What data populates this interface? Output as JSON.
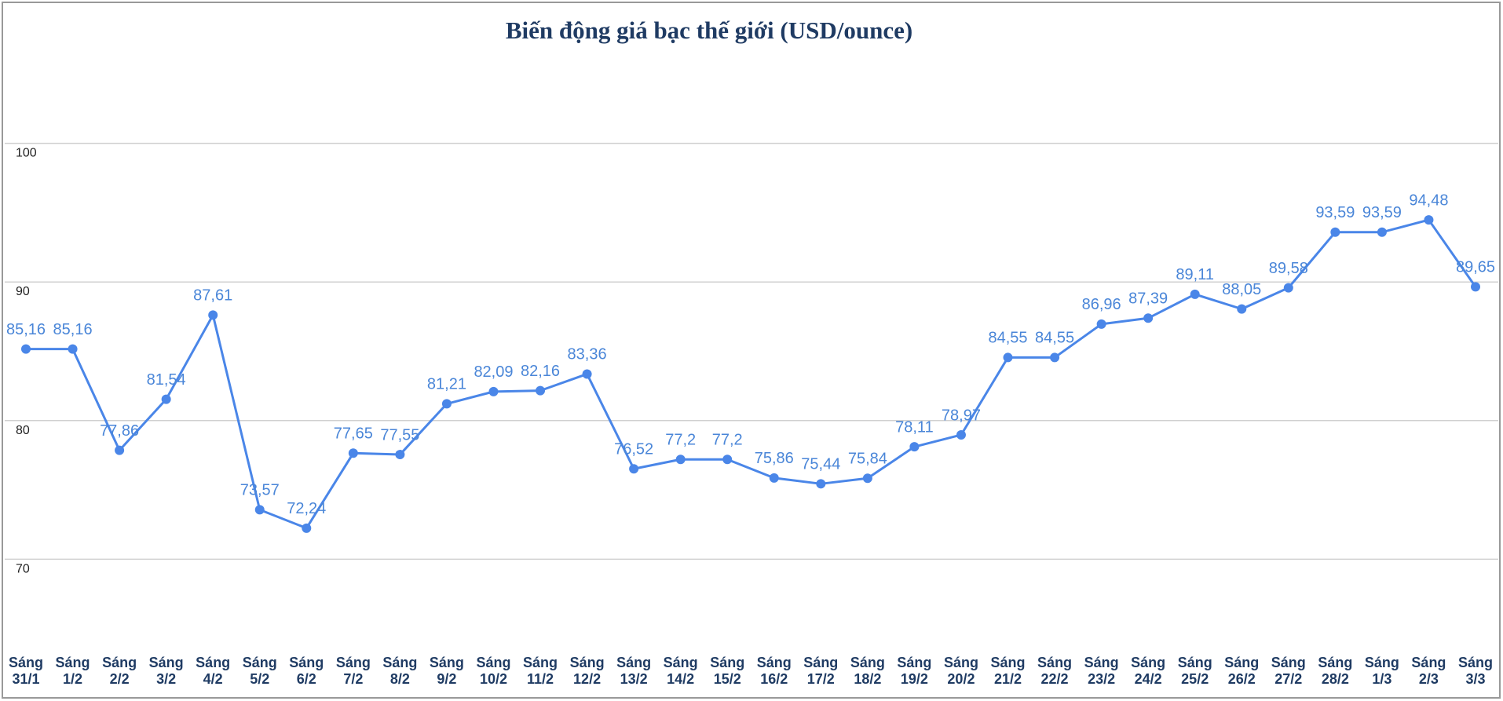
{
  "chart_data": {
    "type": "line",
    "title": "Biến động giá bạc thế giới (USD/ounce)",
    "categories": [
      "Sáng 31/1",
      "Sáng 1/2",
      "Sáng 2/2",
      "Sáng 3/2",
      "Sáng 4/2",
      "Sáng 5/2",
      "Sáng 6/2",
      "Sáng 7/2",
      "Sáng 8/2",
      "Sáng 9/2",
      "Sáng 10/2",
      "Sáng 11/2",
      "Sáng 12/2",
      "Sáng 13/2",
      "Sáng 14/2",
      "Sáng 15/2",
      "Sáng 16/2",
      "Sáng 17/2",
      "Sáng 18/2",
      "Sáng 19/2",
      "Sáng 20/2",
      "Sáng 21/2",
      "Sáng 22/2",
      "Sáng 23/2",
      "Sáng 24/2",
      "Sáng 25/2",
      "Sáng 26/2",
      "Sáng 27/2",
      "Sáng 28/2",
      "Sáng 1/3",
      "Sáng 2/3",
      "Sáng 3/3"
    ],
    "values": [
      85.16,
      85.16,
      77.86,
      81.54,
      87.61,
      73.57,
      72.24,
      77.65,
      77.55,
      81.21,
      82.09,
      82.16,
      83.36,
      76.52,
      77.2,
      77.2,
      75.86,
      75.44,
      75.84,
      78.11,
      78.97,
      84.55,
      84.55,
      86.96,
      87.39,
      89.11,
      88.05,
      89.58,
      93.59,
      93.59,
      94.48,
      89.65
    ],
    "value_labels": [
      "85,16",
      "85,16",
      "77,86",
      "81,54",
      "87,61",
      "73,57",
      "72,24",
      "77,65",
      "77,55",
      "81,21",
      "82,09",
      "82,16",
      "83,36",
      "76,52",
      "77,2",
      "77,2",
      "75,86",
      "75,44",
      "75,84",
      "78,11",
      "78,97",
      "84,55",
      "84,55",
      "86,96",
      "87,39",
      "89,11",
      "88,05",
      "89,58",
      "93,59",
      "93,59",
      "94,48",
      "89,65"
    ],
    "color": "#4a86e8",
    "ylim": [
      63,
      110
    ],
    "yticks": [
      70,
      80,
      90,
      100
    ],
    "grid": true
  }
}
